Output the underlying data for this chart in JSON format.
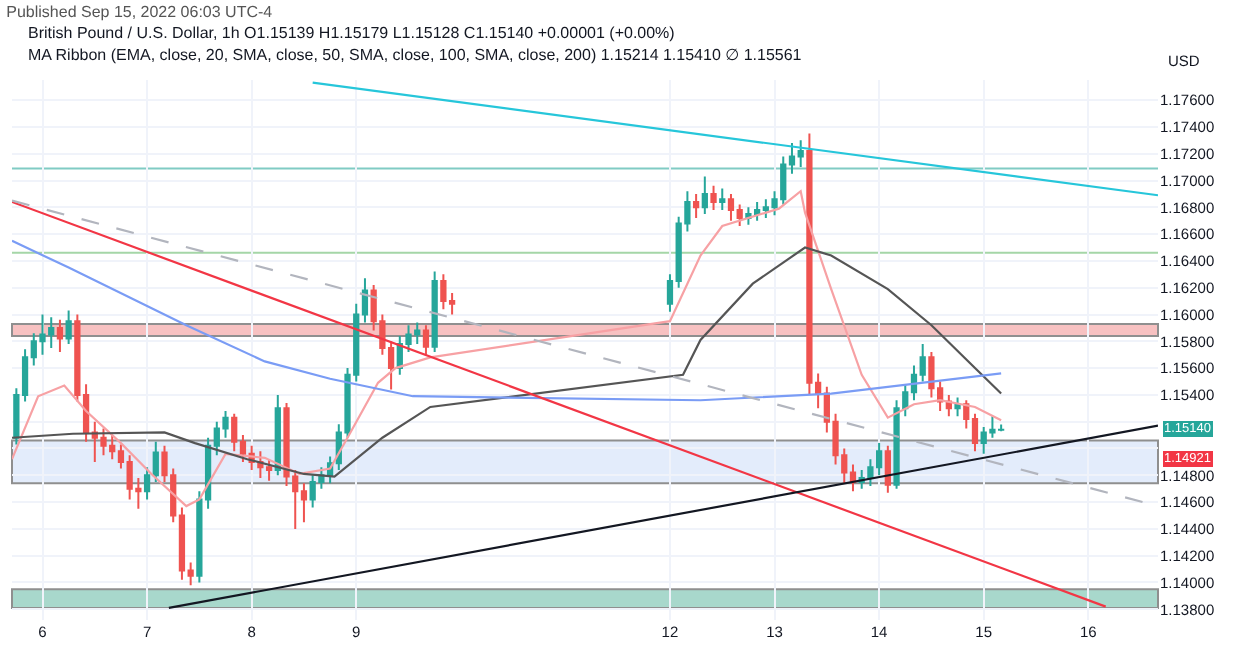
{
  "chart_data": {
    "type": "candlestick",
    "title": "Published Sep 15, 2022 06:03 UTC-4",
    "subtitle": "British Pound / U.S. Dollar, 1h O1.15139 H1.15179 L1.15128 C1.15140 +0.00001 (+0.00%)",
    "ylabel": "USD",
    "annotations": [
      "MA Ribbon (EMA, close, 20, SMA, close, 50, SMA, close, 100, SMA, close, 200) 1.15214 1.15410 ∅ 1.15561",
      {
        "text": "1.15140",
        "y": 1.1514
      },
      {
        "text": "1.14921",
        "y": 1.14921
      }
    ],
    "x": [
      "2022-09-05T18:00",
      "2022-09-05T20:00",
      "2022-09-05T22:00",
      "2022-09-06T00:00",
      "2022-09-06T02:00",
      "2022-09-06T04:00",
      "2022-09-06T06:00",
      "2022-09-06T08:00",
      "2022-09-06T10:00",
      "2022-09-06T12:00",
      "2022-09-06T14:00",
      "2022-09-06T16:00",
      "2022-09-06T18:00",
      "2022-09-06T20:00",
      "2022-09-06T22:00",
      "2022-09-07T00:00",
      "2022-09-07T02:00",
      "2022-09-07T04:00",
      "2022-09-07T06:00",
      "2022-09-07T08:00",
      "2022-09-07T10:00",
      "2022-09-07T12:00",
      "2022-09-07T14:00",
      "2022-09-07T16:00",
      "2022-09-07T18:00",
      "2022-09-07T20:00",
      "2022-09-07T22:00",
      "2022-09-08T00:00",
      "2022-09-08T02:00",
      "2022-09-08T04:00",
      "2022-09-08T06:00",
      "2022-09-08T08:00",
      "2022-09-08T10:00",
      "2022-09-08T12:00",
      "2022-09-08T14:00",
      "2022-09-08T16:00",
      "2022-09-08T18:00",
      "2022-09-08T20:00",
      "2022-09-08T22:00",
      "2022-09-09T00:00",
      "2022-09-09T02:00",
      "2022-09-09T04:00",
      "2022-09-09T06:00",
      "2022-09-09T08:00",
      "2022-09-09T10:00",
      "2022-09-09T12:00",
      "2022-09-09T14:00",
      "2022-09-09T16:00",
      "2022-09-09T18:00",
      "2022-09-09T20:00",
      "2022-09-09T22:00",
      "2022-09-12T00:00",
      "2022-09-12T02:00",
      "2022-09-12T04:00",
      "2022-09-12T06:00",
      "2022-09-12T08:00",
      "2022-09-12T10:00",
      "2022-09-12T12:00",
      "2022-09-12T14:00",
      "2022-09-12T16:00",
      "2022-09-12T18:00",
      "2022-09-12T20:00",
      "2022-09-12T22:00",
      "2022-09-13T00:00",
      "2022-09-13T02:00",
      "2022-09-13T04:00",
      "2022-09-13T06:00",
      "2022-09-13T08:00",
      "2022-09-13T10:00",
      "2022-09-13T12:00",
      "2022-09-13T14:00",
      "2022-09-13T16:00",
      "2022-09-13T18:00",
      "2022-09-13T20:00",
      "2022-09-13T22:00",
      "2022-09-14T00:00",
      "2022-09-14T02:00",
      "2022-09-14T04:00",
      "2022-09-14T06:00",
      "2022-09-14T08:00",
      "2022-09-14T10:00",
      "2022-09-14T12:00",
      "2022-09-14T14:00",
      "2022-09-14T16:00",
      "2022-09-14T18:00",
      "2022-09-14T20:00",
      "2022-09-14T22:00",
      "2022-09-15T00:00",
      "2022-09-15T02:00",
      "2022-09-15T04:00"
    ],
    "ohlc": [
      [
        1.1508,
        1.1545,
        1.1503,
        1.154
      ],
      [
        1.154,
        1.1574,
        1.1535,
        1.1568
      ],
      [
        1.1568,
        1.1586,
        1.1562,
        1.158
      ],
      [
        1.158,
        1.16,
        1.157,
        1.1585
      ],
      [
        1.1585,
        1.1598,
        1.1575,
        1.159
      ],
      [
        1.159,
        1.1596,
        1.1572,
        1.1582
      ],
      [
        1.1582,
        1.1603,
        1.1578,
        1.1595
      ],
      [
        1.1595,
        1.16,
        1.1535,
        1.154
      ],
      [
        1.154,
        1.1548,
        1.1505,
        1.1512
      ],
      [
        1.1512,
        1.152,
        1.149,
        1.1508
      ],
      [
        1.1508,
        1.1515,
        1.1495,
        1.1502
      ],
      [
        1.1502,
        1.151,
        1.1492,
        1.1498
      ],
      [
        1.1498,
        1.1503,
        1.1485,
        1.149
      ],
      [
        1.149,
        1.1495,
        1.1462,
        1.147
      ],
      [
        1.147,
        1.1478,
        1.1455,
        1.1468
      ],
      [
        1.1468,
        1.1486,
        1.1462,
        1.148
      ],
      [
        1.148,
        1.1505,
        1.1475,
        1.1497
      ],
      [
        1.1497,
        1.1502,
        1.1475,
        1.148
      ],
      [
        1.148,
        1.1485,
        1.1445,
        1.145
      ],
      [
        1.145,
        1.1456,
        1.1402,
        1.1409
      ],
      [
        1.1409,
        1.1415,
        1.1398,
        1.1405
      ],
      [
        1.1405,
        1.1468,
        1.14,
        1.1462
      ],
      [
        1.1462,
        1.1508,
        1.1455,
        1.1502
      ],
      [
        1.1502,
        1.152,
        1.1495,
        1.1515
      ],
      [
        1.1515,
        1.1528,
        1.1508,
        1.1523
      ],
      [
        1.1523,
        1.1526,
        1.1498,
        1.1505
      ],
      [
        1.1505,
        1.151,
        1.149,
        1.1496
      ],
      [
        1.1496,
        1.1502,
        1.1484,
        1.149
      ],
      [
        1.149,
        1.1498,
        1.1478,
        1.1486
      ],
      [
        1.1486,
        1.1492,
        1.1476,
        1.1484
      ],
      [
        1.1484,
        1.154,
        1.148,
        1.153
      ],
      [
        1.153,
        1.1534,
        1.1472,
        1.1479
      ],
      [
        1.1479,
        1.1484,
        1.144,
        1.1468
      ],
      [
        1.1468,
        1.1474,
        1.1445,
        1.1462
      ],
      [
        1.1462,
        1.148,
        1.1456,
        1.1475
      ],
      [
        1.1475,
        1.1486,
        1.147,
        1.148
      ],
      [
        1.148,
        1.1494,
        1.1474,
        1.1489
      ],
      [
        1.1489,
        1.1518,
        1.1484,
        1.1512
      ],
      [
        1.1512,
        1.156,
        1.1508,
        1.1555
      ],
      [
        1.1555,
        1.1608,
        1.155,
        1.16
      ],
      [
        1.16,
        1.1627,
        1.1594,
        1.1618
      ],
      [
        1.1618,
        1.1622,
        1.1588,
        1.1595
      ],
      [
        1.1595,
        1.16,
        1.157,
        1.1575
      ],
      [
        1.1575,
        1.158,
        1.1544,
        1.156
      ],
      [
        1.156,
        1.1584,
        1.1555,
        1.1578
      ],
      [
        1.1578,
        1.1592,
        1.1572,
        1.1585
      ],
      [
        1.1585,
        1.1594,
        1.1578,
        1.1588
      ],
      [
        1.1588,
        1.1592,
        1.157,
        1.1576
      ],
      [
        1.1576,
        1.1632,
        1.1572,
        1.1625
      ],
      [
        1.1625,
        1.163,
        1.1604,
        1.161
      ],
      [
        1.161,
        1.1616,
        1.16,
        1.1608
      ],
      [
        1.1608,
        1.163,
        1.1602,
        1.1625
      ],
      [
        1.1625,
        1.1673,
        1.162,
        1.1668
      ],
      [
        1.1668,
        1.1692,
        1.1662,
        1.1684
      ],
      [
        1.1684,
        1.169,
        1.1672,
        1.168
      ],
      [
        1.168,
        1.1703,
        1.1675,
        1.169
      ],
      [
        1.169,
        1.1696,
        1.1678,
        1.1684
      ],
      [
        1.1684,
        1.1694,
        1.1678,
        1.1686
      ],
      [
        1.1686,
        1.169,
        1.167,
        1.1678
      ],
      [
        1.1678,
        1.1682,
        1.1666,
        1.1672
      ],
      [
        1.1672,
        1.168,
        1.1667,
        1.1675
      ],
      [
        1.1675,
        1.1684,
        1.167,
        1.1678
      ],
      [
        1.1678,
        1.1686,
        1.1672,
        1.168
      ],
      [
        1.168,
        1.1692,
        1.1674,
        1.1686
      ],
      [
        1.1686,
        1.1718,
        1.1682,
        1.1712
      ],
      [
        1.1712,
        1.1728,
        1.1705,
        1.1718
      ],
      [
        1.1718,
        1.173,
        1.171,
        1.1722
      ],
      [
        1.1722,
        1.1735,
        1.154,
        1.1549
      ],
      [
        1.1549,
        1.1556,
        1.153,
        1.1541
      ],
      [
        1.1541,
        1.1546,
        1.1512,
        1.152
      ],
      [
        1.152,
        1.1526,
        1.1488,
        1.1495
      ],
      [
        1.1495,
        1.15,
        1.1474,
        1.1482
      ],
      [
        1.1482,
        1.1488,
        1.1468,
        1.1475
      ],
      [
        1.1475,
        1.1484,
        1.147,
        1.1478
      ],
      [
        1.1478,
        1.1492,
        1.1472,
        1.1486
      ],
      [
        1.1486,
        1.1504,
        1.148,
        1.1498
      ],
      [
        1.1498,
        1.1502,
        1.1467,
        1.1473
      ],
      [
        1.1473,
        1.1536,
        1.147,
        1.153
      ],
      [
        1.153,
        1.1548,
        1.1524,
        1.1542
      ],
      [
        1.1542,
        1.1562,
        1.1536,
        1.1555
      ],
      [
        1.1555,
        1.1578,
        1.155,
        1.1568
      ],
      [
        1.1568,
        1.1572,
        1.1538,
        1.1545
      ],
      [
        1.1545,
        1.155,
        1.1528,
        1.1535
      ],
      [
        1.1535,
        1.154,
        1.1524,
        1.153
      ],
      [
        1.153,
        1.1538,
        1.1524,
        1.1533
      ],
      [
        1.1533,
        1.1536,
        1.1515,
        1.1522
      ],
      [
        1.1522,
        1.1526,
        1.1498,
        1.1504
      ],
      [
        1.1504,
        1.1516,
        1.1496,
        1.1512
      ],
      [
        1.1512,
        1.1524,
        1.1508,
        1.15139
      ],
      [
        1.15139,
        1.15179,
        1.15128,
        1.1514
      ]
    ],
    "series": [
      {
        "type": "line",
        "color": "#f7a1a4",
        "x": [
          "2022-09-05T17:00",
          "2022-09-05T23:00",
          "2022-09-06T05:00",
          "2022-09-06T10:00",
          "2022-09-06T18:00",
          "2022-09-07T01:00",
          "2022-09-07T09:00",
          "2022-09-07T12:00",
          "2022-09-07T18:00",
          "2022-09-08T03:00",
          "2022-09-08T11:00",
          "2022-09-08T18:00",
          "2022-09-08T22:00",
          "2022-09-09T05:00",
          "2022-09-09T09:00",
          "2022-09-09T17:00",
          "2022-09-12T00:00",
          "2022-09-12T07:00",
          "2022-09-12T12:00",
          "2022-09-13T01:00",
          "2022-09-13T06:00",
          "2022-09-13T07:00",
          "2022-09-13T13:00",
          "2022-09-13T20:00",
          "2022-09-14T02:00",
          "2022-09-14T08:00",
          "2022-09-14T14:00",
          "2022-09-14T22:00",
          "2022-09-15T04:00"
        ],
        "values": [
          1.1492,
          1.1539,
          1.1547,
          1.1528,
          1.1504,
          1.1481,
          1.1457,
          1.1462,
          1.1496,
          1.1493,
          1.1481,
          1.1485,
          1.1508,
          1.1549,
          1.156,
          1.1568,
          1.1595,
          1.1644,
          1.1666,
          1.1679,
          1.1692,
          1.1676,
          1.1619,
          1.1555,
          1.1523,
          1.1533,
          1.1536,
          1.1531,
          1.1521
        ]
      },
      {
        "type": "line",
        "color": "#555555",
        "x": [
          "2022-09-05T17:00",
          "2022-09-06T07:00",
          "2022-09-07T04:00",
          "2022-09-07T11:00",
          "2022-09-07T23:00",
          "2022-09-08T12:00",
          "2022-09-08T19:00",
          "2022-09-09T06:00",
          "2022-09-09T17:00",
          "2022-09-12T03:00",
          "2022-09-12T07:00",
          "2022-09-12T19:00",
          "2022-09-13T07:00",
          "2022-09-13T13:00",
          "2022-09-14T02:00",
          "2022-09-14T12:00",
          "2022-09-14T22:00",
          "2022-09-15T04:00"
        ],
        "values": [
          1.1508,
          1.1511,
          1.1512,
          1.1504,
          1.1492,
          1.1481,
          1.1479,
          1.1508,
          1.1531,
          1.1555,
          1.1581,
          1.1623,
          1.165,
          1.1644,
          1.1619,
          1.1592,
          1.156,
          1.1541
        ]
      },
      {
        "type": "line",
        "color": "#7a9cf5",
        "x": [
          "2022-09-05T17:00",
          "2022-09-06T06:00",
          "2022-09-07T09:00",
          "2022-09-08T03:00",
          "2022-09-08T18:00",
          "2022-09-09T13:00",
          "2022-09-12T07:00",
          "2022-09-13T13:00",
          "2022-09-15T04:00"
        ],
        "values": [
          1.1655,
          1.1635,
          1.1592,
          1.1565,
          1.1552,
          1.1539,
          1.1536,
          1.1541,
          1.1556
        ]
      },
      {
        "type": "line",
        "color": "#26c6da",
        "x": [
          "2022-09-08T14:00",
          "2022-09-16T16:00"
        ],
        "values": [
          1.1773,
          1.1689
        ]
      },
      {
        "type": "line",
        "color": "#f23645",
        "x": [
          "2022-09-05T17:00",
          "2022-09-16T04:00"
        ],
        "values": [
          1.1684,
          1.1382
        ]
      },
      {
        "type": "line",
        "color": "#131722",
        "x": [
          "2022-09-07T05:00",
          "2022-09-16T16:00"
        ],
        "values": [
          1.1381,
          1.1517
        ]
      },
      {
        "type": "line",
        "color": "#b2b5be",
        "line_style": "dashed",
        "x": [
          "2022-09-05T17:00",
          "2022-09-16T16:00"
        ],
        "values": [
          1.1685,
          1.1457
        ]
      }
    ],
    "ref_lines": [
      {
        "axis": "y",
        "value": 1.1709,
        "color": "#80cbc4"
      },
      {
        "axis": "y",
        "value": 1.1646,
        "color": "#a5d6a7"
      }
    ],
    "bands": [
      {
        "axis": "y",
        "from": 1.1584,
        "to": 1.1593,
        "color": "#f7c1c1"
      },
      {
        "axis": "y",
        "from": 1.1474,
        "to": 1.1506,
        "color": "#e3ecfb"
      },
      {
        "axis": "y",
        "from": 1.1381,
        "to": 1.1395,
        "color": "#a8d8cc"
      }
    ],
    "xlim": [
      "2022-09-05T17:00",
      "2022-09-16T16:00"
    ],
    "xticks": [
      {
        "value": "2022-09-06",
        "label": "6"
      },
      {
        "value": "2022-09-07",
        "label": "7"
      },
      {
        "value": "2022-09-08",
        "label": "8"
      },
      {
        "value": "2022-09-09",
        "label": "9"
      },
      {
        "value": "2022-09-12",
        "label": "12"
      },
      {
        "value": "2022-09-13",
        "label": "13"
      },
      {
        "value": "2022-09-14",
        "label": "14"
      },
      {
        "value": "2022-09-15",
        "label": "15"
      },
      {
        "value": "2022-09-16",
        "label": "16"
      }
    ],
    "ylim": [
      1.1372,
      1.1775
    ],
    "yticks": [
      {
        "value": 1.138,
        "label": "1.13800"
      },
      {
        "value": 1.14,
        "label": "1.14000"
      },
      {
        "value": 1.142,
        "label": "1.14200"
      },
      {
        "value": 1.144,
        "label": "1.14400"
      },
      {
        "value": 1.146,
        "label": "1.14600"
      },
      {
        "value": 1.148,
        "label": "1.14800"
      },
      {
        "value": 1.15,
        "label": null
      },
      {
        "value": 1.152,
        "label": null
      },
      {
        "value": 1.154,
        "label": "1.15400"
      },
      {
        "value": 1.156,
        "label": "1.15600"
      },
      {
        "value": 1.158,
        "label": "1.15800"
      },
      {
        "value": 1.16,
        "label": "1.16000"
      },
      {
        "value": 1.162,
        "label": "1.16200"
      },
      {
        "value": 1.164,
        "label": "1.16400"
      },
      {
        "value": 1.166,
        "label": "1.16600"
      },
      {
        "value": 1.168,
        "label": "1.16800"
      },
      {
        "value": 1.17,
        "label": "1.17000"
      },
      {
        "value": 1.172,
        "label": "1.17200"
      },
      {
        "value": 1.174,
        "label": "1.17400"
      },
      {
        "value": 1.176,
        "label": "1.17600"
      }
    ],
    "grid": true
  }
}
